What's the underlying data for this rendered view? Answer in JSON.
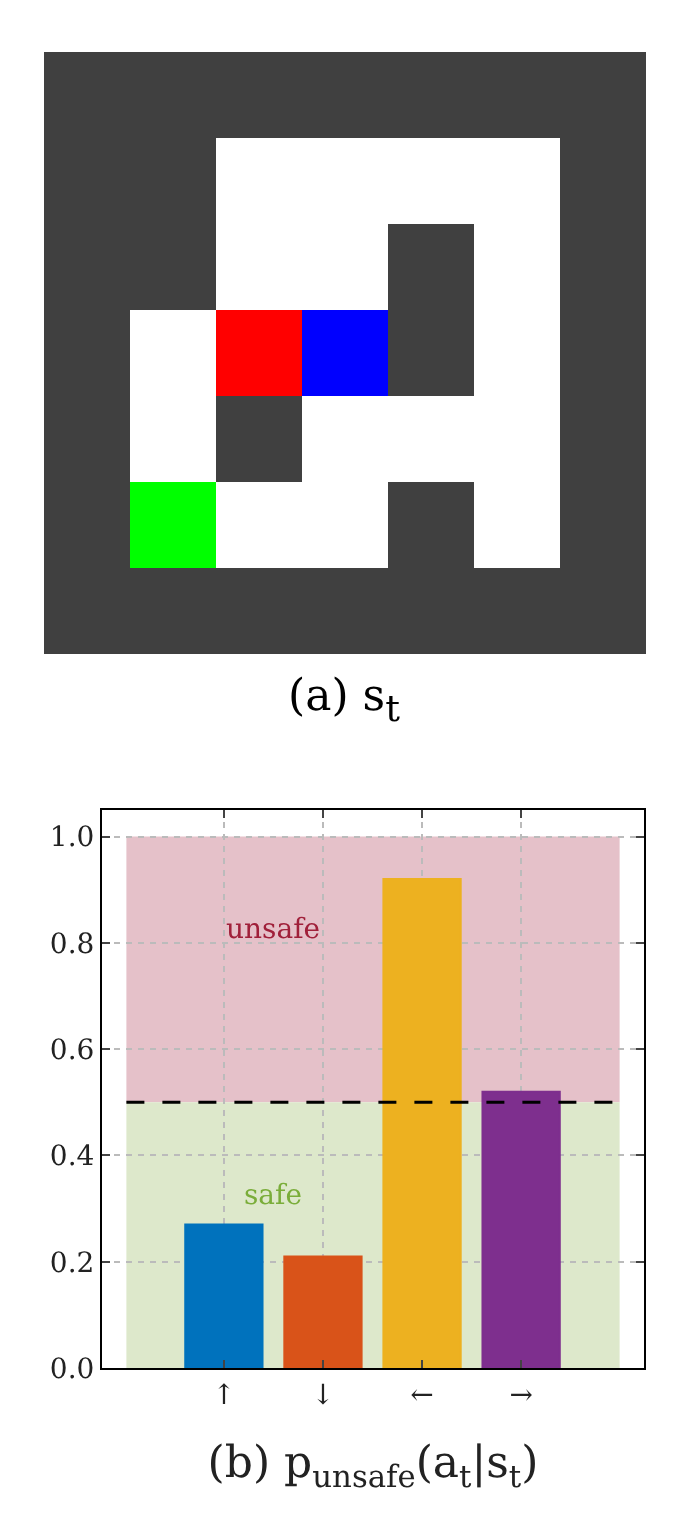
{
  "chart_data": {
    "type": "bar",
    "xlabel": "(b) p$_{unsafe}$(a$_{t}$|s$_{t}$)",
    "annotations": [
      "(a) s$_{t}$"
    ],
    "categories": [
      "↑",
      "↓",
      "←",
      "→"
    ],
    "values": [
      0.27,
      0.21,
      0.92,
      0.52
    ],
    "colors": [
      "#0072bd",
      "#d95319",
      "#edb120",
      "#7e2f8e"
    ],
    "ylim": [
      0,
      1.05
    ],
    "yticks": [
      {
        "value": 0,
        "label": "0.0"
      },
      {
        "value": 0.2,
        "label": "0.2"
      },
      {
        "value": 0.4,
        "label": "0.4"
      },
      {
        "value": 0.6,
        "label": "0.6"
      },
      {
        "value": 0.8,
        "label": "0.8"
      },
      {
        "value": 1,
        "label": "1.0"
      }
    ],
    "ref_lines": [
      {
        "axis": "y",
        "value": 0.5,
        "color": "#000000",
        "line_style": "dashed"
      }
    ],
    "bands": [
      {
        "axis": "y",
        "from": 0.5,
        "to": 1,
        "label": "unsafe",
        "color": "#e5c1c9"
      },
      {
        "axis": "y",
        "from": 0,
        "to": 0.5,
        "label": "safe",
        "color": "#dde8cb"
      }
    ],
    "grid": true
  }
}
